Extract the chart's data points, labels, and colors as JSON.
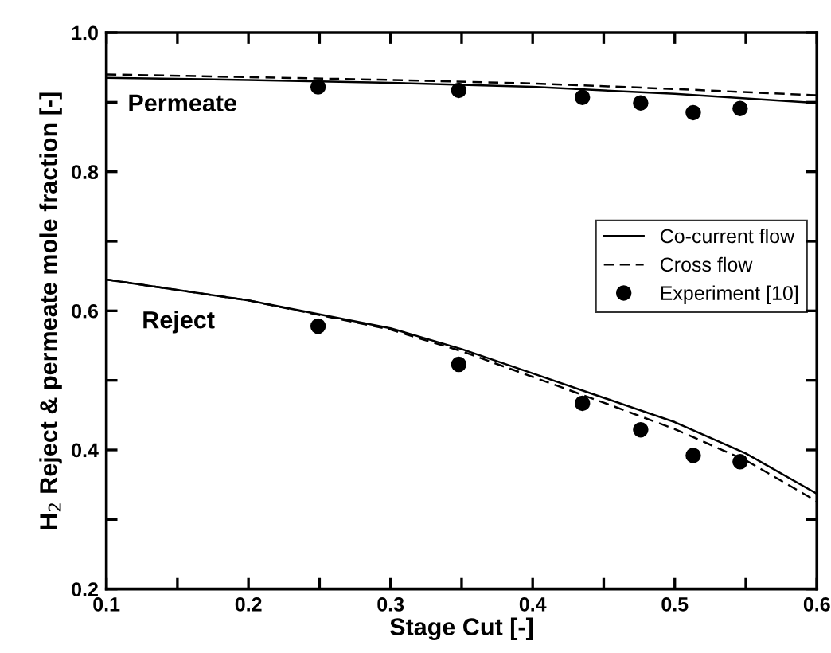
{
  "chart_data": {
    "type": "line",
    "xlabel": "Stage Cut [-]",
    "ylabel": "H$_{2}$ Reject & permeate mole fraction [-]",
    "xlim": [
      0.1,
      0.6
    ],
    "ylim": [
      0.2,
      1.0
    ],
    "xticks": [
      0.1,
      {
        "value": 0.15,
        "label": null
      },
      0.2,
      {
        "value": 0.25,
        "label": null
      },
      0.3,
      {
        "value": 0.35,
        "label": null
      },
      0.4,
      {
        "value": 0.45,
        "label": null
      },
      0.5,
      {
        "value": 0.55,
        "label": null
      },
      0.6
    ],
    "yticks": [
      0.2,
      {
        "value": 0.3,
        "label": null
      },
      0.4,
      {
        "value": 0.5,
        "label": null
      },
      0.6,
      {
        "value": 0.7,
        "label": null
      },
      0.8,
      {
        "value": 0.9,
        "label": null
      },
      {
        "value": 1.0,
        "label": "1.0"
      }
    ],
    "series": [
      {
        "name": "Co-current flow",
        "line_style": "solid",
        "color": "#000000",
        "x": [
          0.1,
          0.2,
          0.3,
          0.4,
          0.5,
          0.6
        ],
        "values": [
          0.935,
          0.932,
          0.928,
          0.922,
          0.912,
          0.899
        ]
      },
      {
        "name": "Cross flow",
        "line_style": "dashed",
        "color": "#000000",
        "x": [
          0.1,
          0.2,
          0.3,
          0.4,
          0.5,
          0.6
        ],
        "values": [
          0.94,
          0.936,
          0.932,
          0.927,
          0.919,
          0.91
        ]
      },
      {
        "line_style": "solid",
        "color": "#000000",
        "x": [
          0.1,
          0.2,
          0.3,
          0.35,
          0.4,
          0.45,
          0.5,
          0.55,
          0.6
        ],
        "values": [
          0.645,
          0.615,
          0.575,
          0.545,
          0.51,
          0.475,
          0.44,
          0.395,
          0.337
        ]
      },
      {
        "line_style": "dashed",
        "color": "#000000",
        "x": [
          0.1,
          0.2,
          0.3,
          0.35,
          0.4,
          0.45,
          0.5,
          0.55,
          0.6
        ],
        "values": [
          0.645,
          0.615,
          0.573,
          0.542,
          0.505,
          0.468,
          0.43,
          0.385,
          0.326
        ]
      },
      {
        "name": "Experiment [10]",
        "type": "scatter",
        "marker": "circle",
        "color": "#000000",
        "x": [
          0.249,
          0.348,
          0.435,
          0.476,
          0.513,
          0.546,
          0.249,
          0.348,
          0.435,
          0.476,
          0.513,
          0.546
        ],
        "values": [
          0.922,
          0.917,
          0.907,
          0.899,
          0.885,
          0.891,
          0.578,
          0.523,
          0.467,
          0.429,
          0.392,
          0.383
        ]
      }
    ],
    "annotations": [
      "Permeate",
      "Reject"
    ],
    "legend": "right",
    "grid": false
  }
}
